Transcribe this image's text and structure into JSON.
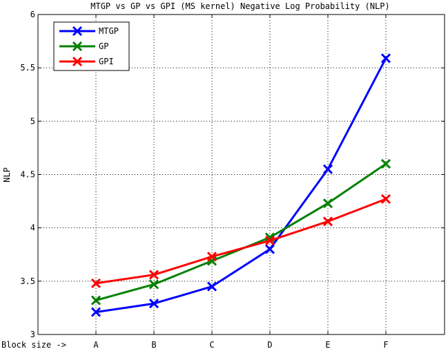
{
  "chart_data": {
    "type": "line",
    "title": "MTGP vs GP vs GPI (MS kernel) Negative Log Probability (NLP)",
    "xlabel": "Block size ->",
    "ylabel": "NLP",
    "categories": [
      "A",
      "B",
      "C",
      "D",
      "E",
      "F"
    ],
    "ylim": [
      3,
      6
    ],
    "yticks": [
      "3",
      "3.5",
      "4",
      "4.5",
      "5",
      "5.5",
      "6"
    ],
    "grid": true,
    "legend_position": "top-left",
    "series": [
      {
        "name": "MTGP",
        "color": "#0000ff",
        "values": [
          3.21,
          3.29,
          3.45,
          3.8,
          4.55,
          5.59
        ]
      },
      {
        "name": "GP",
        "color": "#008000",
        "values": [
          3.32,
          3.47,
          3.69,
          3.91,
          4.23,
          4.6
        ]
      },
      {
        "name": "GPI",
        "color": "#ff0000",
        "values": [
          3.48,
          3.56,
          3.73,
          3.88,
          4.06,
          4.27
        ]
      }
    ]
  }
}
